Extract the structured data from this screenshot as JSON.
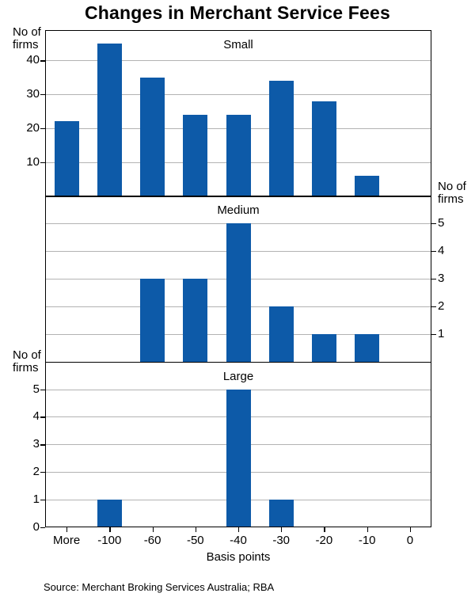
{
  "chart_data": {
    "type": "bar",
    "title": "Changes in Merchant Service Fees",
    "categories": [
      "More",
      "-100",
      "-60",
      "-50",
      "-40",
      "-30",
      "-20",
      "-10",
      "0"
    ],
    "xlabel": "Basis points",
    "source": "Source: Merchant Broking Services Australia; RBA",
    "bar_color": "#0d5aa8",
    "grid_color": "#b3b3b3",
    "panels": [
      {
        "label": "Small",
        "ylabel": "No of firms",
        "ylabel_lines": [
          "No of",
          "firms"
        ],
        "axis_side": "left",
        "ticks": [
          10,
          20,
          30,
          40
        ],
        "ylim": [
          0,
          49
        ],
        "values": [
          22,
          45,
          35,
          24,
          24,
          34,
          28,
          6,
          0
        ]
      },
      {
        "label": "Medium",
        "ylabel": "No of firms",
        "ylabel_lines": [
          "No of",
          "firms"
        ],
        "axis_side": "right",
        "ticks": [
          1,
          2,
          3,
          4,
          5
        ],
        "ylim": [
          0,
          6
        ],
        "values": [
          0,
          0,
          3,
          3,
          5,
          2,
          1,
          1,
          0
        ]
      },
      {
        "label": "Large",
        "ylabel": "No of firms",
        "ylabel_lines": [
          "No of",
          "firms"
        ],
        "axis_side": "left",
        "ticks": [
          0,
          1,
          2,
          3,
          4,
          5
        ],
        "ylim": [
          0,
          6
        ],
        "values": [
          0,
          1,
          0,
          0,
          5,
          1,
          0,
          0,
          0
        ]
      }
    ]
  }
}
